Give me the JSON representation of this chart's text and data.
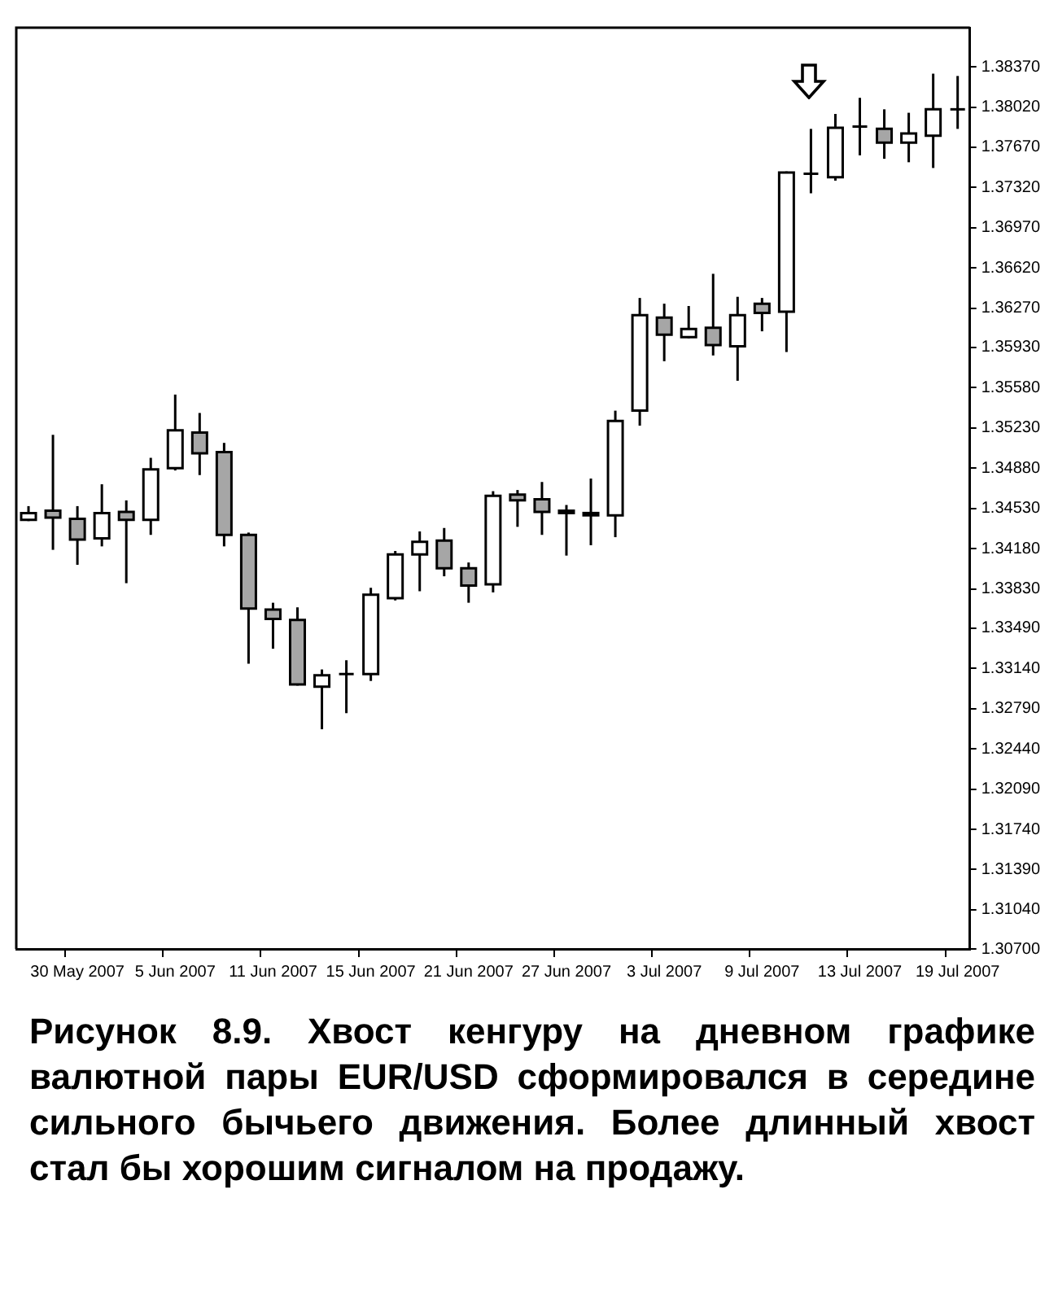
{
  "chart_data": {
    "type": "candlestick",
    "categories": [
      null,
      null,
      "30 May 2007",
      null,
      null,
      null,
      "5 Jun 2007",
      null,
      null,
      null,
      "11 Jun 2007",
      null,
      null,
      null,
      "15 Jun 2007",
      null,
      null,
      null,
      "21 Jun 2007",
      null,
      null,
      null,
      "27 Jun 2007",
      null,
      null,
      null,
      "3 Jul 2007",
      null,
      null,
      null,
      "9 Jul 2007",
      null,
      null,
      null,
      "13 Jul 2007",
      null,
      null,
      null,
      "19 Jul 2007"
    ],
    "ohlc": [
      [
        1.3443,
        1.3455,
        1.3442,
        1.3449
      ],
      [
        1.3451,
        1.3517,
        1.3417,
        1.3445
      ],
      [
        1.3444,
        1.3455,
        1.3404,
        1.3426
      ],
      [
        1.3427,
        1.3474,
        1.342,
        1.3449
      ],
      [
        1.345,
        1.346,
        1.3388,
        1.3443
      ],
      [
        1.3443,
        1.3497,
        1.343,
        1.3487
      ],
      [
        1.3488,
        1.3552,
        1.3486,
        1.3521
      ],
      [
        1.3519,
        1.3536,
        1.3482,
        1.3501
      ],
      [
        1.3502,
        1.351,
        1.342,
        1.343
      ],
      [
        1.343,
        1.3432,
        1.3318,
        1.3366
      ],
      [
        1.3365,
        1.3371,
        1.3331,
        1.3357
      ],
      [
        1.3356,
        1.3367,
        1.3299,
        1.33
      ],
      [
        1.3298,
        1.3313,
        1.3261,
        1.3308
      ],
      [
        1.3309,
        1.3321,
        1.3275,
        1.3309
      ],
      [
        1.3309,
        1.3384,
        1.3303,
        1.3378
      ],
      [
        1.3375,
        1.3416,
        1.3373,
        1.3413
      ],
      [
        1.3413,
        1.3433,
        1.3381,
        1.3424
      ],
      [
        1.3425,
        1.3436,
        1.3394,
        1.3401
      ],
      [
        1.3401,
        1.3406,
        1.3371,
        1.3386
      ],
      [
        1.3387,
        1.3468,
        1.338,
        1.3464
      ],
      [
        1.3465,
        1.3469,
        1.3437,
        1.346
      ],
      [
        1.3461,
        1.3476,
        1.343,
        1.345
      ],
      [
        1.3451,
        1.3456,
        1.3412,
        1.3449
      ],
      [
        1.3449,
        1.3479,
        1.3421,
        1.3447
      ],
      [
        1.3447,
        1.3538,
        1.3428,
        1.3529
      ],
      [
        1.3538,
        1.3636,
        1.3525,
        1.3621
      ],
      [
        1.3619,
        1.3631,
        1.3581,
        1.3604
      ],
      [
        1.3602,
        1.3629,
        1.3601,
        1.3609
      ],
      [
        1.361,
        1.3657,
        1.3586,
        1.3595
      ],
      [
        1.3594,
        1.3637,
        1.3564,
        1.3621
      ],
      [
        1.3631,
        1.3636,
        1.3607,
        1.3623
      ],
      [
        1.3624,
        1.3746,
        1.3589,
        1.3745
      ],
      [
        1.3743,
        1.3783,
        1.3727,
        1.3744
      ],
      [
        1.3741,
        1.3796,
        1.3738,
        1.3784
      ],
      [
        1.3785,
        1.381,
        1.376,
        1.3785
      ],
      [
        1.3783,
        1.38,
        1.3757,
        1.3771
      ],
      [
        1.3771,
        1.3797,
        1.3754,
        1.3779
      ],
      [
        1.3777,
        1.3831,
        1.3749,
        1.38
      ],
      [
        1.38,
        1.3829,
        1.3783,
        1.38
      ]
    ],
    "ylim": [
      1.307,
      1.3871
    ],
    "yticks": [
      {
        "value": 1.307,
        "label": "1.30700"
      },
      {
        "value": 1.3104,
        "label": "1.31040"
      },
      {
        "value": 1.3139,
        "label": "1.31390"
      },
      {
        "value": 1.3174,
        "label": "1.31740"
      },
      {
        "value": 1.3209,
        "label": "1.32090"
      },
      {
        "value": 1.3244,
        "label": "1.32440"
      },
      {
        "value": 1.3279,
        "label": "1.32790"
      },
      {
        "value": 1.3314,
        "label": "1.33140"
      },
      {
        "value": 1.3349,
        "label": "1.33490"
      },
      {
        "value": 1.3383,
        "label": "1.33830"
      },
      {
        "value": 1.3418,
        "label": "1.34180"
      },
      {
        "value": 1.3453,
        "label": "1.34530"
      },
      {
        "value": 1.3488,
        "label": "1.34880"
      },
      {
        "value": 1.3523,
        "label": "1.35230"
      },
      {
        "value": 1.3558,
        "label": "1.35580"
      },
      {
        "value": 1.3593,
        "label": "1.35930"
      },
      {
        "value": 1.3627,
        "label": "1.36270"
      },
      {
        "value": 1.3662,
        "label": "1.36620"
      },
      {
        "value": 1.3697,
        "label": "1.36970"
      },
      {
        "value": 1.3732,
        "label": "1.37320"
      },
      {
        "value": 1.3767,
        "label": "1.37670"
      },
      {
        "value": 1.3802,
        "label": "1.38020"
      },
      {
        "value": 1.3837,
        "label": "1.38370"
      }
    ],
    "grid": false,
    "annotations": [
      "Рисунок 8.9. Хвост кенгуру на дневном графике валютной пары EUR/USD сформировался в середине сильного бычьего движения. Более длинный хвост стал бы хорошим сигналом на продажу."
    ]
  }
}
